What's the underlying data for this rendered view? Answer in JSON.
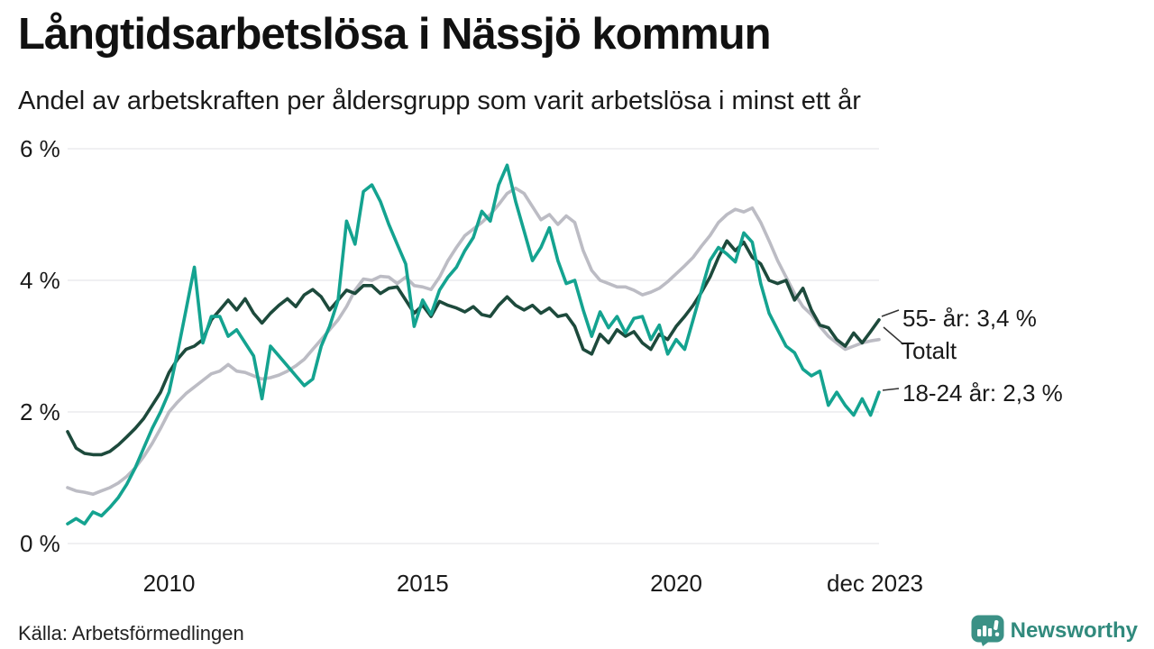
{
  "header": {
    "title": "Långtidsarbetslösa i Nässjö kommun",
    "subtitle": "Andel av arbetskraften per åldersgrupp som varit arbetslösa i minst ett år"
  },
  "footer": {
    "source": "Källa: Arbetsförmedlingen",
    "brand": "Newsworthy",
    "brand_color": "#318a7d",
    "logo_color": "#3b9186"
  },
  "chart_data": {
    "type": "line",
    "title": "Långtidsarbetslösa i Nässjö kommun",
    "subtitle": "Andel av arbetskraften per åldersgrupp som varit arbetslösa i minst ett år",
    "unit": "%",
    "x_start": 2008.0,
    "x_end": 2024.0,
    "points_per_interval": "2 months",
    "ylim": [
      0,
      6
    ],
    "grid": "horizontal",
    "grid_color": "#e7e7e9",
    "y_ticks": [
      {
        "value": 0,
        "label": "0 %"
      },
      {
        "value": 2,
        "label": "2 %"
      },
      {
        "value": 4,
        "label": "4 %"
      },
      {
        "value": 6,
        "label": "6 %"
      }
    ],
    "x_ticks": [
      {
        "year": 2010,
        "label": "2010"
      },
      {
        "year": 2015,
        "label": "2015"
      },
      {
        "year": 2020,
        "label": "2020"
      },
      {
        "year": 2023.92,
        "label": "dec 2023"
      }
    ],
    "series": [
      {
        "key": "total",
        "name": "Totalt",
        "color": "#bcbcc4",
        "end_value": 3.1,
        "values": [
          0.85,
          0.8,
          0.78,
          0.75,
          0.8,
          0.85,
          0.92,
          1.02,
          1.15,
          1.32,
          1.52,
          1.75,
          2.0,
          2.15,
          2.28,
          2.38,
          2.48,
          2.58,
          2.62,
          2.72,
          2.62,
          2.6,
          2.55,
          2.5,
          2.52,
          2.56,
          2.62,
          2.7,
          2.8,
          2.95,
          3.1,
          3.25,
          3.4,
          3.6,
          3.85,
          4.02,
          4.0,
          4.06,
          4.05,
          3.95,
          4.05,
          3.92,
          3.9,
          3.86,
          4.05,
          4.3,
          4.5,
          4.68,
          4.78,
          4.88,
          5.0,
          5.15,
          5.32,
          5.4,
          5.32,
          5.12,
          4.92,
          5.0,
          4.85,
          4.98,
          4.88,
          4.45,
          4.15,
          4.0,
          3.95,
          3.9,
          3.9,
          3.85,
          3.78,
          3.82,
          3.88,
          3.98,
          4.1,
          4.22,
          4.35,
          4.52,
          4.68,
          4.88,
          5.0,
          5.08,
          5.04,
          5.1,
          4.88,
          4.6,
          4.3,
          4.05,
          3.8,
          3.6,
          3.48,
          3.3,
          3.15,
          3.05,
          2.95,
          3.0,
          3.05,
          3.08,
          3.1
        ]
      },
      {
        "key": "55-plus",
        "name": "55- år",
        "color": "#1d4a3c",
        "end_value": 3.4,
        "values": [
          1.7,
          1.45,
          1.37,
          1.35,
          1.35,
          1.4,
          1.5,
          1.62,
          1.75,
          1.9,
          2.1,
          2.3,
          2.6,
          2.8,
          2.95,
          3.0,
          3.1,
          3.4,
          3.55,
          3.7,
          3.55,
          3.72,
          3.5,
          3.35,
          3.5,
          3.62,
          3.72,
          3.6,
          3.78,
          3.86,
          3.75,
          3.55,
          3.7,
          3.85,
          3.8,
          3.92,
          3.92,
          3.8,
          3.88,
          3.9,
          3.7,
          3.5,
          3.62,
          3.45,
          3.68,
          3.62,
          3.58,
          3.52,
          3.6,
          3.48,
          3.45,
          3.62,
          3.75,
          3.62,
          3.55,
          3.62,
          3.5,
          3.58,
          3.45,
          3.48,
          3.3,
          2.95,
          2.88,
          3.18,
          3.05,
          3.25,
          3.15,
          3.22,
          3.05,
          2.95,
          3.18,
          3.1,
          3.3,
          3.45,
          3.62,
          3.82,
          4.05,
          4.35,
          4.6,
          4.45,
          4.58,
          4.35,
          4.25,
          4.0,
          3.95,
          4.0,
          3.7,
          3.88,
          3.55,
          3.32,
          3.28,
          3.1,
          3.0,
          3.2,
          3.05,
          3.22,
          3.4
        ]
      },
      {
        "key": "18-24",
        "name": "18-24 år",
        "color": "#14a390",
        "end_value": 2.3,
        "values": [
          0.3,
          0.38,
          0.3,
          0.48,
          0.42,
          0.55,
          0.7,
          0.9,
          1.15,
          1.45,
          1.75,
          2.0,
          2.3,
          2.9,
          3.55,
          4.2,
          3.05,
          3.45,
          3.45,
          3.15,
          3.25,
          3.05,
          2.85,
          2.2,
          3.0,
          2.85,
          2.7,
          2.55,
          2.4,
          2.5,
          3.0,
          3.3,
          3.7,
          4.9,
          4.55,
          5.35,
          5.45,
          5.2,
          4.85,
          4.55,
          4.25,
          3.3,
          3.7,
          3.48,
          3.85,
          4.05,
          4.2,
          4.45,
          4.65,
          5.05,
          4.9,
          5.45,
          5.75,
          5.2,
          4.75,
          4.3,
          4.5,
          4.8,
          4.3,
          3.95,
          4.0,
          3.55,
          3.15,
          3.52,
          3.28,
          3.45,
          3.2,
          3.42,
          3.45,
          3.1,
          3.32,
          2.88,
          3.1,
          2.95,
          3.4,
          3.85,
          4.3,
          4.5,
          4.4,
          4.28,
          4.72,
          4.58,
          3.95,
          3.5,
          3.25,
          3.0,
          2.9,
          2.65,
          2.55,
          2.62,
          2.1,
          2.3,
          2.1,
          1.95,
          2.2,
          1.95,
          2.3
        ]
      }
    ],
    "annotations": [
      {
        "key": "55-plus",
        "text": "55- år: 3,4 %"
      },
      {
        "key": "total",
        "text": "Totalt"
      },
      {
        "key": "18-24",
        "text": "18-24 år: 2,3 %"
      }
    ]
  }
}
